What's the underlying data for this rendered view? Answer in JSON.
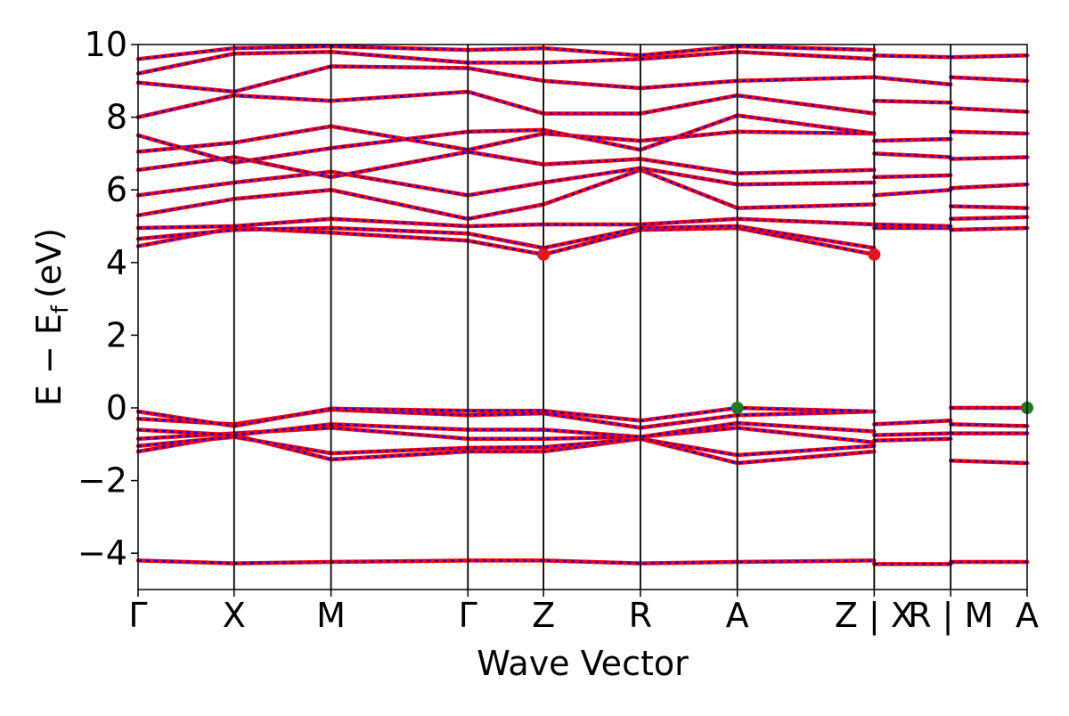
{
  "chart_data": {
    "type": "line",
    "title": "",
    "xlabel": "Wave Vector",
    "ylabel": "E − E",
    "ylabel_sub": "f",
    "ylabel_unit": "(eV)",
    "ylim": [
      -5,
      10
    ],
    "y_ticks": [
      -4,
      -2,
      0,
      2,
      4,
      6,
      8,
      10
    ],
    "y_tick_labels": [
      "−4",
      "−2",
      "0",
      "2",
      "4",
      "6",
      "8",
      "10"
    ],
    "path_length": 100,
    "high_symmetry_points": [
      {
        "label": "Γ",
        "x": 0
      },
      {
        "label": "X",
        "x": 10.8
      },
      {
        "label": "M",
        "x": 21.7
      },
      {
        "label": "Γ",
        "x": 37.1
      },
      {
        "label": "Z",
        "x": 45.6
      },
      {
        "label": "R",
        "x": 56.5
      },
      {
        "label": "A",
        "x": 67.4
      },
      {
        "label": "Z | X",
        "x": 82.8
      },
      {
        "label": "R | M",
        "x": 91.4
      },
      {
        "label": "A",
        "x": 100
      }
    ],
    "path_breaks": [
      82.8,
      91.4
    ],
    "band_colors": {
      "spin_up": "#ff0000",
      "spin_down": "#0000ff"
    },
    "grid": false,
    "legend": "none",
    "markers": [
      {
        "name": "CBM",
        "x": 45.6,
        "y": 4.22,
        "color": "#e8161b"
      },
      {
        "name": "CBM",
        "x": 82.8,
        "y": 4.22,
        "color": "#e8161b"
      },
      {
        "name": "VBM",
        "x": 67.4,
        "y": 0.0,
        "color": "#1c7a21"
      },
      {
        "name": "VBM",
        "x": 100,
        "y": 0.0,
        "color": "#1c7a21"
      }
    ],
    "bands": [
      {
        "x": [
          0,
          10.8,
          21.7,
          37.1,
          45.6,
          56.5,
          67.4,
          82.8
        ],
        "y": [
          -4.2,
          -4.28,
          -4.24,
          -4.2,
          -4.2,
          -4.28,
          -4.24,
          -4.2
        ]
      },
      {
        "x": [
          82.8,
          91.4
        ],
        "y": [
          -4.3,
          -4.3
        ]
      },
      {
        "x": [
          91.4,
          100
        ],
        "y": [
          -4.24,
          -4.24
        ]
      },
      {
        "x": [
          0,
          10.8,
          21.7,
          37.1,
          45.6,
          56.5,
          67.4,
          82.8
        ],
        "y": [
          -1.2,
          -0.75,
          -1.42,
          -1.2,
          -1.2,
          -0.85,
          -1.52,
          -1.2
        ]
      },
      {
        "x": [
          0,
          10.8,
          21.7,
          37.1,
          45.6,
          56.5,
          67.4,
          82.8
        ],
        "y": [
          -1.05,
          -0.8,
          -1.25,
          -1.1,
          -1.08,
          -0.85,
          -1.3,
          -1.05
        ]
      },
      {
        "x": [
          0,
          10.8,
          21.7,
          37.1,
          45.6,
          56.5,
          67.4,
          82.8
        ],
        "y": [
          -0.85,
          -0.7,
          -0.55,
          -0.85,
          -0.85,
          -0.8,
          -0.55,
          -0.95
        ]
      },
      {
        "x": [
          0,
          10.8,
          21.7,
          37.1,
          45.6,
          56.5,
          67.4,
          82.8
        ],
        "y": [
          -0.6,
          -0.75,
          -0.45,
          -0.6,
          -0.6,
          -0.8,
          -0.42,
          -0.65
        ]
      },
      {
        "x": [
          0,
          10.8,
          21.7,
          37.1,
          45.6,
          56.5,
          67.4,
          82.8
        ],
        "y": [
          -0.3,
          -0.45,
          -0.05,
          -0.2,
          -0.15,
          -0.55,
          -0.2,
          -0.1
        ]
      },
      {
        "x": [
          0,
          10.8,
          21.7,
          37.1,
          45.6,
          56.5,
          67.4,
          82.8
        ],
        "y": [
          -0.1,
          -0.5,
          -0.02,
          -0.08,
          -0.08,
          -0.35,
          0.0,
          -0.1
        ]
      },
      {
        "x": [
          82.8,
          91.4
        ],
        "y": [
          -0.45,
          -0.35
        ]
      },
      {
        "x": [
          82.8,
          91.4
        ],
        "y": [
          -0.75,
          -0.7
        ]
      },
      {
        "x": [
          82.8,
          91.4
        ],
        "y": [
          -0.9,
          -0.85
        ]
      },
      {
        "x": [
          91.4,
          100
        ],
        "y": [
          0.0,
          0.0
        ]
      },
      {
        "x": [
          91.4,
          100
        ],
        "y": [
          -0.45,
          -0.5
        ]
      },
      {
        "x": [
          91.4,
          100
        ],
        "y": [
          -0.7,
          -0.7
        ]
      },
      {
        "x": [
          91.4,
          100
        ],
        "y": [
          -1.45,
          -1.52
        ]
      },
      {
        "x": [
          0,
          10.8,
          21.7,
          37.1,
          45.6,
          56.5,
          67.4,
          82.8
        ],
        "y": [
          4.45,
          4.95,
          4.82,
          4.6,
          4.22,
          4.9,
          4.95,
          4.22
        ]
      },
      {
        "x": [
          0,
          10.8,
          21.7,
          37.1,
          45.6,
          56.5,
          67.4,
          82.8
        ],
        "y": [
          4.65,
          4.9,
          4.95,
          4.8,
          4.4,
          4.95,
          5.0,
          4.4
        ]
      },
      {
        "x": [
          0,
          10.8,
          21.7,
          37.1,
          45.6,
          56.5,
          67.4,
          82.8
        ],
        "y": [
          4.95,
          5.0,
          5.2,
          5.0,
          5.05,
          5.05,
          5.2,
          5.05
        ]
      },
      {
        "x": [
          0,
          10.8,
          21.7,
          37.1,
          45.6,
          56.5,
          67.4,
          82.8
        ],
        "y": [
          5.3,
          5.75,
          6.0,
          5.2,
          5.6,
          6.55,
          5.5,
          5.6
        ]
      },
      {
        "x": [
          0,
          10.8,
          21.7,
          37.1,
          45.6,
          56.5,
          67.4,
          82.8
        ],
        "y": [
          5.85,
          6.2,
          6.5,
          5.85,
          6.2,
          6.6,
          6.15,
          6.2
        ]
      },
      {
        "x": [
          0,
          10.8,
          21.7,
          37.1,
          45.6,
          56.5,
          67.4,
          82.8
        ],
        "y": [
          6.55,
          6.9,
          6.35,
          7.05,
          6.7,
          6.85,
          6.45,
          6.55
        ]
      },
      {
        "x": [
          0,
          10.8,
          21.7,
          37.1,
          45.6,
          56.5,
          67.4,
          82.8
        ],
        "y": [
          7.05,
          7.3,
          7.75,
          7.1,
          7.55,
          7.35,
          7.6,
          7.55
        ]
      },
      {
        "x": [
          0,
          10.8,
          21.7,
          37.1,
          45.6,
          56.5,
          67.4,
          82.8
        ],
        "y": [
          7.5,
          6.75,
          7.15,
          7.6,
          7.65,
          7.1,
          8.05,
          7.55
        ]
      },
      {
        "x": [
          0,
          10.8,
          21.7,
          37.1,
          45.6,
          56.5,
          67.4,
          82.8
        ],
        "y": [
          8.0,
          8.6,
          8.45,
          8.7,
          8.1,
          8.1,
          8.6,
          8.1
        ]
      },
      {
        "x": [
          0,
          10.8,
          21.7,
          37.1,
          45.6,
          56.5,
          67.4,
          82.8
        ],
        "y": [
          8.95,
          8.7,
          9.4,
          9.35,
          9.0,
          8.8,
          9.0,
          9.1
        ]
      },
      {
        "x": [
          0,
          10.8,
          21.7,
          37.1,
          45.6,
          56.5,
          67.4,
          82.8
        ],
        "y": [
          9.2,
          9.75,
          9.8,
          9.5,
          9.5,
          9.6,
          9.8,
          9.6
        ]
      },
      {
        "x": [
          0,
          10.8,
          21.7,
          37.1,
          45.6,
          56.5,
          67.4,
          82.8
        ],
        "y": [
          9.6,
          9.9,
          9.95,
          9.85,
          9.9,
          9.7,
          9.95,
          9.85
        ]
      },
      {
        "x": [
          82.8,
          91.4
        ],
        "y": [
          4.95,
          4.95
        ]
      },
      {
        "x": [
          82.8,
          91.4
        ],
        "y": [
          5.05,
          5.0
        ]
      },
      {
        "x": [
          82.8,
          91.4
        ],
        "y": [
          5.85,
          6.0
        ]
      },
      {
        "x": [
          82.8,
          91.4
        ],
        "y": [
          6.35,
          6.4
        ]
      },
      {
        "x": [
          82.8,
          91.4
        ],
        "y": [
          7.0,
          6.9
        ]
      },
      {
        "x": [
          82.8,
          91.4
        ],
        "y": [
          7.35,
          7.4
        ]
      },
      {
        "x": [
          82.8,
          91.4
        ],
        "y": [
          8.45,
          8.4
        ]
      },
      {
        "x": [
          82.8,
          91.4
        ],
        "y": [
          9.1,
          8.9
        ]
      },
      {
        "x": [
          82.8,
          91.4
        ],
        "y": [
          9.7,
          9.65
        ]
      },
      {
        "x": [
          91.4,
          100
        ],
        "y": [
          4.9,
          4.95
        ]
      },
      {
        "x": [
          91.4,
          100
        ],
        "y": [
          5.2,
          5.25
        ]
      },
      {
        "x": [
          91.4,
          100
        ],
        "y": [
          5.55,
          5.5
        ]
      },
      {
        "x": [
          91.4,
          100
        ],
        "y": [
          6.05,
          6.15
        ]
      },
      {
        "x": [
          91.4,
          100
        ],
        "y": [
          6.85,
          6.9
        ]
      },
      {
        "x": [
          91.4,
          100
        ],
        "y": [
          7.6,
          7.55
        ]
      },
      {
        "x": [
          91.4,
          100
        ],
        "y": [
          8.25,
          8.15
        ]
      },
      {
        "x": [
          91.4,
          100
        ],
        "y": [
          9.1,
          9.0
        ]
      },
      {
        "x": [
          91.4,
          100
        ],
        "y": [
          9.65,
          9.7
        ]
      }
    ]
  }
}
